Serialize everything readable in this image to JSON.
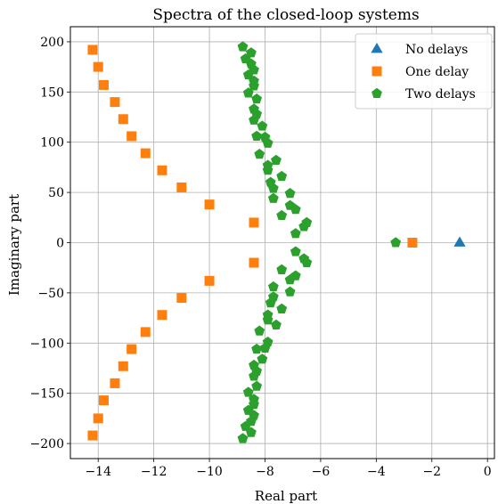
{
  "chart_data": {
    "type": "scatter",
    "title": "Spectra of the closed-loop systems",
    "xlabel": "Real part",
    "ylabel": "Imaginary part",
    "xlim": [
      -15,
      0.25
    ],
    "ylim": [
      -215,
      215
    ],
    "xticks": [
      -14,
      -12,
      -10,
      -8,
      -6,
      -4,
      -2,
      0
    ],
    "yticks": [
      -200,
      -150,
      -100,
      -50,
      0,
      50,
      100,
      150,
      200
    ],
    "xtick_labels": [
      "−14",
      "−12",
      "−10",
      "−8",
      "−6",
      "−4",
      "−2",
      "0"
    ],
    "ytick_labels": [
      "−200",
      "−150",
      "−100",
      "−50",
      "0",
      "50",
      "100",
      "150",
      "200"
    ],
    "grid": true,
    "legend_position": "top-right",
    "series": [
      {
        "name": "No delays",
        "marker": "triangle",
        "color": "#1f77b4",
        "points": [
          [
            -1.0,
            0
          ]
        ]
      },
      {
        "name": "One delay",
        "marker": "square",
        "color": "#ff7f0e",
        "points": [
          [
            -2.7,
            0
          ],
          [
            -8.4,
            20
          ],
          [
            -8.4,
            -20
          ],
          [
            -10.0,
            38
          ],
          [
            -10.0,
            -38
          ],
          [
            -11.0,
            55
          ],
          [
            -11.0,
            -55
          ],
          [
            -11.7,
            72
          ],
          [
            -11.7,
            -72
          ],
          [
            -12.3,
            89
          ],
          [
            -12.3,
            -89
          ],
          [
            -12.8,
            106
          ],
          [
            -12.8,
            -106
          ],
          [
            -13.1,
            123
          ],
          [
            -13.1,
            -123
          ],
          [
            -13.4,
            140
          ],
          [
            -13.4,
            -140
          ],
          [
            -13.8,
            157
          ],
          [
            -13.8,
            -157
          ],
          [
            -14.0,
            175
          ],
          [
            -14.0,
            -175
          ],
          [
            -14.2,
            192
          ],
          [
            -14.2,
            -192
          ]
        ]
      },
      {
        "name": "Two delays",
        "marker": "pentagon",
        "color": "#2ca02c",
        "points": [
          [
            -3.3,
            0
          ],
          [
            -6.5,
            20
          ],
          [
            -6.5,
            -20
          ],
          [
            -6.6,
            16
          ],
          [
            -6.6,
            -16
          ],
          [
            -6.9,
            33
          ],
          [
            -6.9,
            -33
          ],
          [
            -6.9,
            9
          ],
          [
            -6.9,
            -9
          ],
          [
            -7.1,
            49
          ],
          [
            -7.1,
            -49
          ],
          [
            -7.1,
            37
          ],
          [
            -7.1,
            -37
          ],
          [
            -7.4,
            66
          ],
          [
            -7.4,
            -66
          ],
          [
            -7.4,
            27
          ],
          [
            -7.4,
            -27
          ],
          [
            -7.6,
            82
          ],
          [
            -7.6,
            -82
          ],
          [
            -7.7,
            54
          ],
          [
            -7.7,
            -54
          ],
          [
            -7.7,
            44
          ],
          [
            -7.7,
            -44
          ],
          [
            -7.8,
            60
          ],
          [
            -7.8,
            -60
          ],
          [
            -7.9,
            72
          ],
          [
            -7.9,
            -72
          ],
          [
            -7.9,
            99
          ],
          [
            -7.9,
            -99
          ],
          [
            -7.9,
            77
          ],
          [
            -7.9,
            -77
          ],
          [
            -8.0,
            105
          ],
          [
            -8.0,
            -105
          ],
          [
            -8.1,
            116
          ],
          [
            -8.1,
            -116
          ],
          [
            -8.2,
            88
          ],
          [
            -8.2,
            -88
          ],
          [
            -8.3,
            143
          ],
          [
            -8.3,
            -143
          ],
          [
            -8.3,
            128
          ],
          [
            -8.3,
            -128
          ],
          [
            -8.3,
            106
          ],
          [
            -8.3,
            -106
          ],
          [
            -8.4,
            122
          ],
          [
            -8.4,
            -122
          ],
          [
            -8.4,
            133
          ],
          [
            -8.4,
            -133
          ],
          [
            -8.4,
            156
          ],
          [
            -8.4,
            -156
          ],
          [
            -8.4,
            161
          ],
          [
            -8.4,
            -161
          ],
          [
            -8.4,
            172
          ],
          [
            -8.4,
            -172
          ],
          [
            -8.5,
            189
          ],
          [
            -8.5,
            -189
          ],
          [
            -8.5,
            178
          ],
          [
            -8.5,
            -178
          ],
          [
            -8.6,
            149
          ],
          [
            -8.6,
            -149
          ],
          [
            -8.6,
            167
          ],
          [
            -8.6,
            -167
          ],
          [
            -8.7,
            183
          ],
          [
            -8.7,
            -183
          ],
          [
            -8.8,
            195
          ],
          [
            -8.8,
            -195
          ]
        ]
      }
    ]
  }
}
